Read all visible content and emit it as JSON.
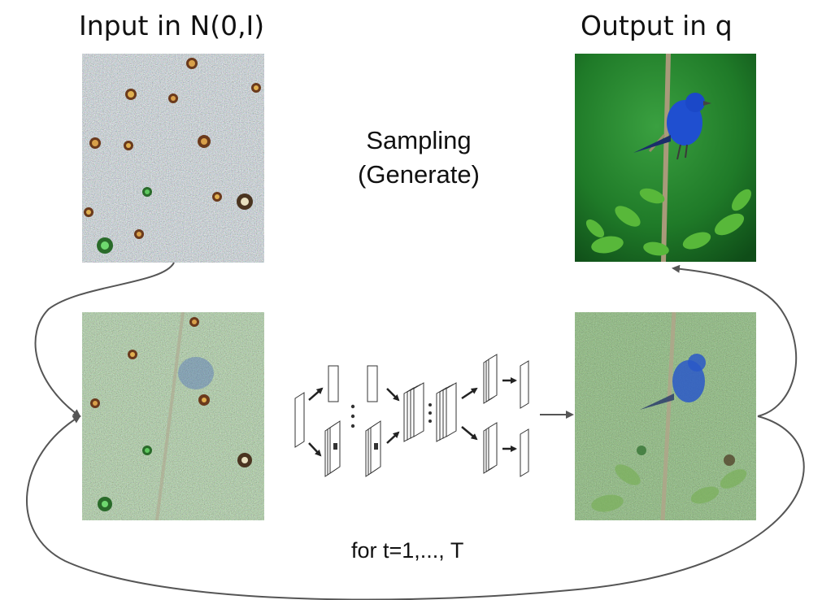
{
  "labels": {
    "input": "Input in N(0,I)",
    "output": "Output in q",
    "process_line1": "Sampling",
    "process_line2": "(Generate)",
    "loop": "for t=1,..., T"
  },
  "colors": {
    "noise_base": "#8a8a7a",
    "noisy_green": "#5f7f4a",
    "photo_bg_green": "#2f8f2f",
    "bird_blue": "#1f4fd0",
    "leaf_green": "#58b83a",
    "arrow_gray": "#555555",
    "network_dark": "#222222"
  },
  "icons": [
    "pure-noise-image",
    "noisy-bird-image",
    "clean-bird-photo",
    "denoising-network-icon",
    "arrow-icon"
  ]
}
